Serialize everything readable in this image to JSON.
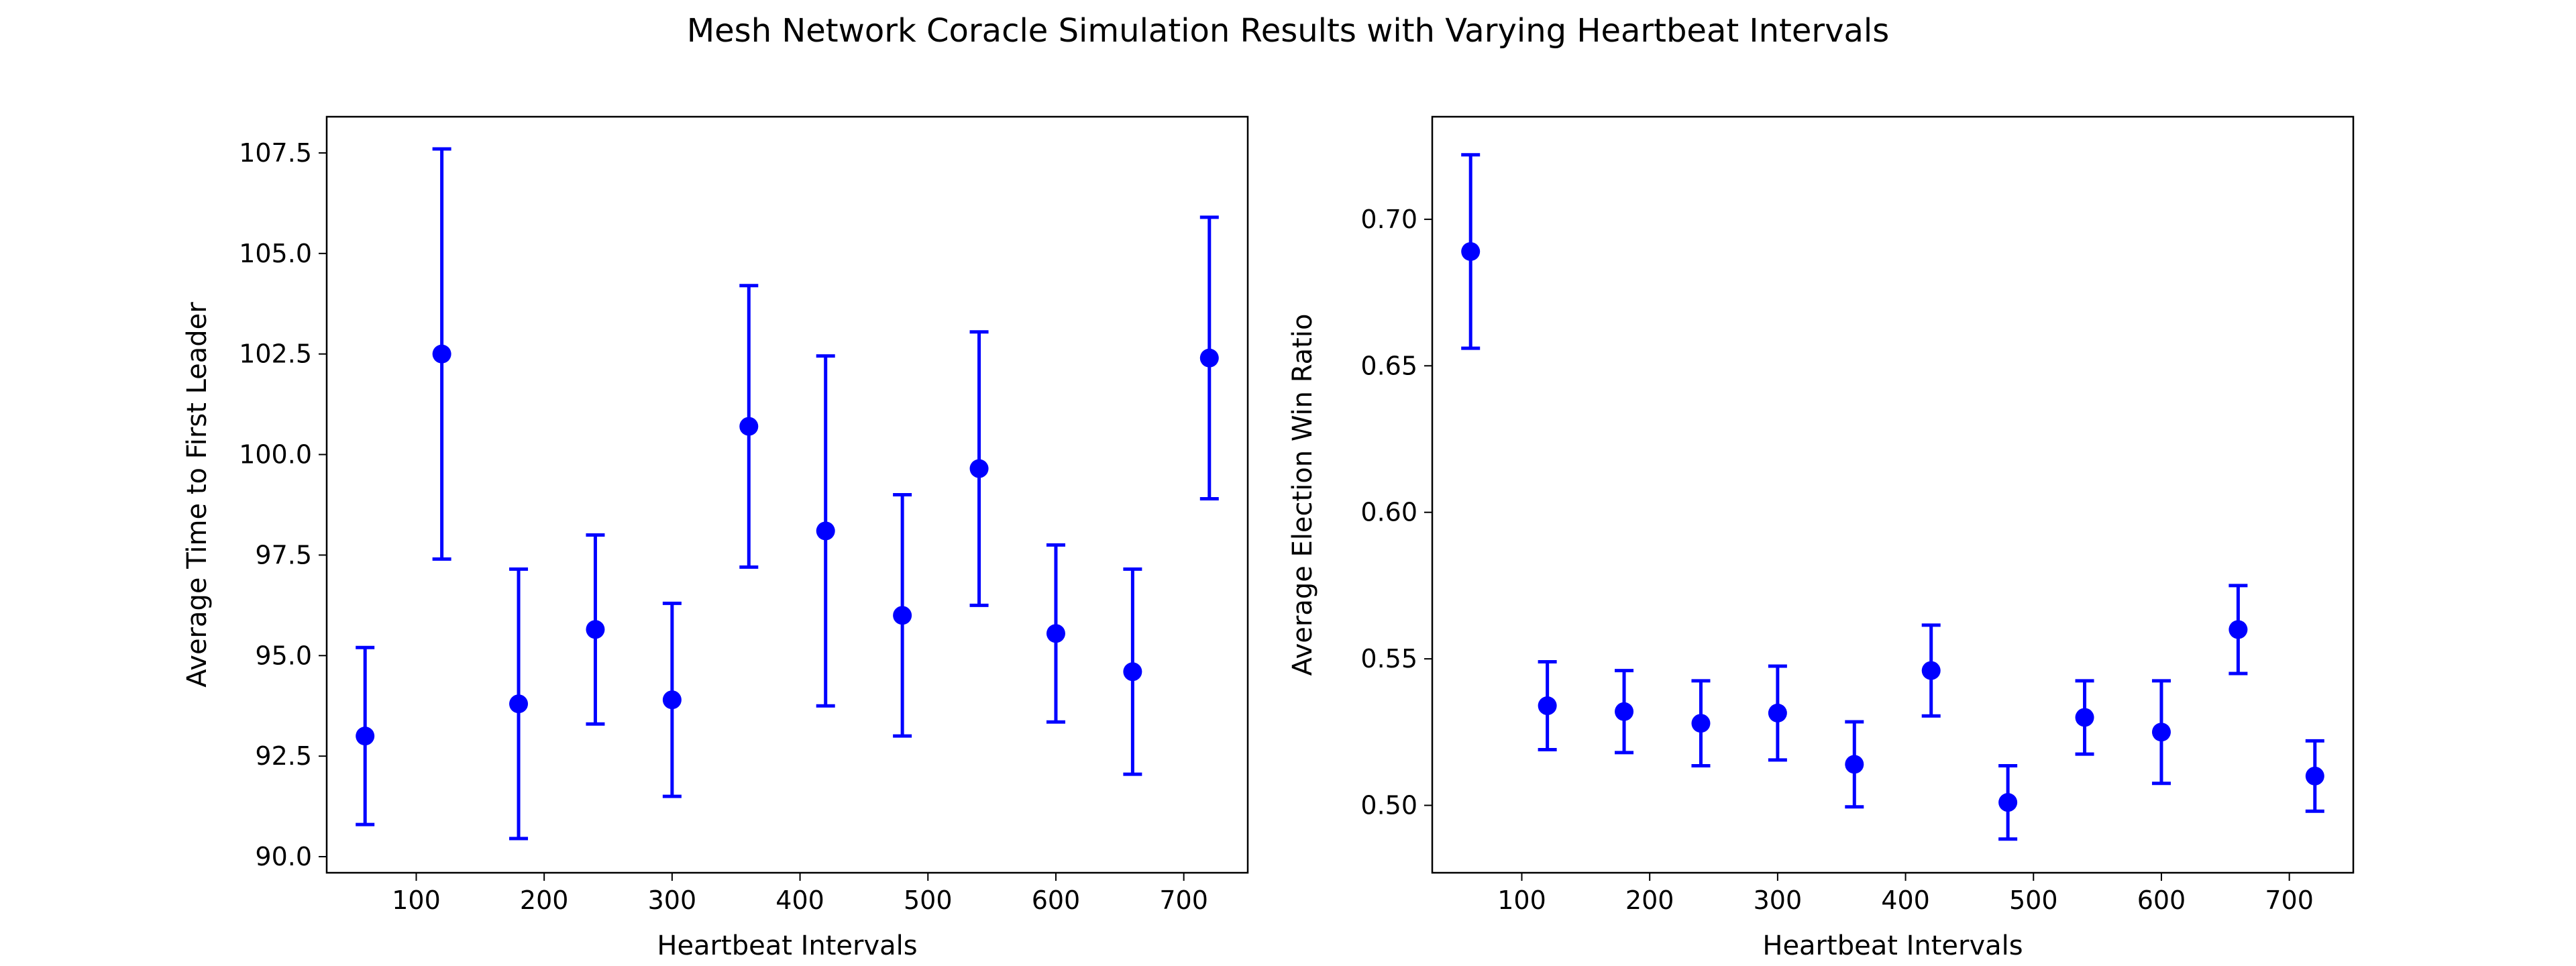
{
  "figure": {
    "title": "Mesh Network Coracle Simulation Results with Varying Heartbeat Intervals"
  },
  "chart_data": [
    {
      "type": "scatter",
      "title": "",
      "xlabel": "Heartbeat Intervals",
      "ylabel": "Average Time to First Leader",
      "xlim": [
        30,
        750
      ],
      "ylim": [
        89.6,
        108.4
      ],
      "xticks": [
        100,
        200,
        300,
        400,
        500,
        600,
        700
      ],
      "yticks": [
        90.0,
        92.5,
        95.0,
        97.5,
        100.0,
        102.5,
        105.0,
        107.5
      ],
      "ytick_labels": [
        "90.0",
        "92.5",
        "95.0",
        "97.5",
        "100.0",
        "102.5",
        "105.0",
        "107.5"
      ],
      "grid": false,
      "marker_color": "#0000ff",
      "points": [
        {
          "x": 60,
          "y": 93.0,
          "err": 2.2
        },
        {
          "x": 120,
          "y": 102.5,
          "err": 5.1
        },
        {
          "x": 180,
          "y": 93.8,
          "err": 3.35
        },
        {
          "x": 240,
          "y": 95.65,
          "err": 2.35
        },
        {
          "x": 300,
          "y": 93.9,
          "err": 2.4
        },
        {
          "x": 360,
          "y": 100.7,
          "err": 3.5
        },
        {
          "x": 420,
          "y": 98.1,
          "err": 4.35
        },
        {
          "x": 480,
          "y": 96.0,
          "err": 3.0
        },
        {
          "x": 540,
          "y": 99.65,
          "err": 3.4
        },
        {
          "x": 600,
          "y": 95.55,
          "err": 2.2
        },
        {
          "x": 660,
          "y": 94.6,
          "err": 2.55
        },
        {
          "x": 720,
          "y": 102.4,
          "err": 3.5
        }
      ]
    },
    {
      "type": "scatter",
      "title": "",
      "xlabel": "Heartbeat Intervals",
      "ylabel": "Average Election Win Ratio",
      "xlim": [
        30,
        750
      ],
      "ylim": [
        0.477,
        0.735
      ],
      "xticks": [
        100,
        200,
        300,
        400,
        500,
        600,
        700
      ],
      "yticks": [
        0.5,
        0.55,
        0.6,
        0.65,
        0.7
      ],
      "ytick_labels": [
        "0.50",
        "0.55",
        "0.60",
        "0.65",
        "0.70"
      ],
      "grid": false,
      "marker_color": "#0000ff",
      "points": [
        {
          "x": 60,
          "y": 0.689,
          "err": 0.033
        },
        {
          "x": 120,
          "y": 0.534,
          "err": 0.015
        },
        {
          "x": 180,
          "y": 0.532,
          "err": 0.014
        },
        {
          "x": 240,
          "y": 0.528,
          "err": 0.0145
        },
        {
          "x": 300,
          "y": 0.5315,
          "err": 0.016
        },
        {
          "x": 360,
          "y": 0.514,
          "err": 0.0145
        },
        {
          "x": 420,
          "y": 0.546,
          "err": 0.0155
        },
        {
          "x": 480,
          "y": 0.501,
          "err": 0.0125
        },
        {
          "x": 540,
          "y": 0.53,
          "err": 0.0125
        },
        {
          "x": 600,
          "y": 0.525,
          "err": 0.0175
        },
        {
          "x": 660,
          "y": 0.56,
          "err": 0.015
        },
        {
          "x": 720,
          "y": 0.51,
          "err": 0.012
        }
      ]
    }
  ]
}
